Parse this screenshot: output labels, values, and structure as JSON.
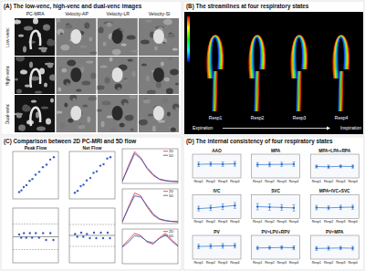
{
  "panels": {
    "a": {
      "title": "(A) The low-venc, high-venc and dual-venc images",
      "columns": [
        "PC-MRA",
        "Velocity-AP",
        "Velocity-LR",
        "Velocity-SI"
      ],
      "rows": [
        "Low-venc",
        "High-venc",
        "Dual-venc"
      ]
    },
    "b": {
      "title": "(B) The streamlines at four respiratory states",
      "states": [
        "Resp1",
        "Resp2",
        "Resp3",
        "Resp4"
      ],
      "left_label": "Expiration",
      "right_label": "Inspiration"
    },
    "c": {
      "title": "(C) Comparison between 2D PC-MRI and 5D flow"
    },
    "d": {
      "title": "(D) The internal consistency of four respiratory states"
    }
  },
  "chart_data": [
    {
      "type": "scatter",
      "title": "Peak Flow",
      "x": [
        70,
        95,
        120,
        150,
        185,
        215,
        250,
        290,
        330,
        370,
        410,
        450
      ],
      "values": [
        72,
        90,
        125,
        145,
        190,
        210,
        255,
        285,
        335,
        360,
        415,
        440
      ],
      "xlim": [
        0,
        500
      ],
      "ylim": [
        0,
        500
      ],
      "color": "#3b5fc0",
      "tick_labels": false
    },
    {
      "type": "scatter",
      "title": "Net Flow",
      "x": [
        12,
        18,
        25,
        31,
        38,
        46,
        53,
        60,
        68,
        75,
        83,
        90
      ],
      "values": [
        13,
        17,
        27,
        30,
        39,
        44,
        55,
        58,
        70,
        73,
        85,
        88
      ],
      "xlim": [
        0,
        100
      ],
      "ylim": [
        0,
        100
      ],
      "color": "#3b5fc0",
      "tick_labels": false
    },
    {
      "type": "scatter",
      "x": [
        71,
        92,
        122,
        148,
        188,
        212,
        252,
        288,
        332,
        365,
        412,
        445
      ],
      "values": [
        2,
        -5,
        5,
        -5,
        5,
        -5,
        5,
        -5,
        5,
        -10,
        5,
        -10
      ],
      "reference_lines": [
        -3,
        25,
        -31
      ],
      "xlim": [
        0,
        500
      ],
      "ylim": [
        -60,
        60
      ],
      "color": "#3b5fc0",
      "tick_labels": false
    },
    {
      "type": "scatter",
      "x": [
        12.5,
        17.5,
        26,
        30.5,
        38.5,
        45,
        54,
        59,
        69,
        74,
        84,
        89
      ],
      "values": [
        1,
        -1,
        2,
        -1,
        1,
        -2,
        2,
        -2,
        2,
        -2,
        2,
        -2
      ],
      "reference_lines": [
        0,
        8,
        -8
      ],
      "xlim": [
        0,
        100
      ],
      "ylim": [
        -20,
        20
      ],
      "color": "#3b5fc0",
      "tick_labels": false
    },
    {
      "type": "line",
      "x": [
        1,
        2,
        3,
        4,
        5,
        6,
        7,
        8,
        9,
        10
      ],
      "series": [
        {
          "name": "2D",
          "color": "#d62728",
          "values": [
            20,
            180,
            320,
            260,
            150,
            80,
            40,
            25,
            20,
            18
          ]
        },
        {
          "name": "5D",
          "color": "#1f4fbf",
          "values": [
            25,
            160,
            300,
            250,
            160,
            90,
            45,
            30,
            22,
            20
          ]
        }
      ],
      "xlim": [
        1,
        10
      ],
      "ylim": [
        0,
        350
      ],
      "legend": "upper right",
      "tick_labels": false
    },
    {
      "type": "line",
      "x": [
        1,
        2,
        3,
        4,
        5,
        6,
        7,
        8,
        9,
        10
      ],
      "series": [
        {
          "name": "2D",
          "color": "#d62728",
          "values": [
            10,
            120,
            220,
            200,
            120,
            60,
            30,
            20,
            15,
            12
          ]
        },
        {
          "name": "5D",
          "color": "#1f4fbf",
          "values": [
            15,
            110,
            200,
            190,
            130,
            70,
            35,
            22,
            16,
            14
          ]
        }
      ],
      "xlim": [
        1,
        10
      ],
      "ylim": [
        0,
        250
      ],
      "legend": "upper right",
      "tick_labels": false
    },
    {
      "type": "line",
      "x": [
        1,
        2,
        3,
        4,
        5,
        6,
        7,
        8,
        9,
        10
      ],
      "series": [
        {
          "name": "2D",
          "color": "#d62728",
          "values": [
            40,
            55,
            70,
            65,
            50,
            45,
            60,
            70,
            55,
            42
          ]
        },
        {
          "name": "5D",
          "color": "#1f4fbf",
          "values": [
            38,
            50,
            65,
            62,
            52,
            48,
            58,
            66,
            52,
            40
          ]
        }
      ],
      "xlim": [
        1,
        10
      ],
      "ylim": [
        0,
        80
      ],
      "legend": "upper right",
      "tick_labels": false
    },
    {
      "type": "line",
      "title": "AAO",
      "categories": [
        "Resp1",
        "Resp2",
        "Resp3",
        "Resp4"
      ],
      "values": [
        86,
        88,
        87,
        89
      ],
      "errors": [
        14,
        13,
        14,
        15
      ],
      "ylim": [
        0,
        150
      ],
      "color": "#2a6fc9",
      "tick_labels": "x"
    },
    {
      "type": "line",
      "title": "MPA",
      "categories": [
        "Resp1",
        "Resp2",
        "Resp3",
        "Resp4"
      ],
      "values": [
        84,
        85,
        86,
        87
      ],
      "errors": [
        13,
        14,
        13,
        14
      ],
      "ylim": [
        0,
        150
      ],
      "color": "#2a6fc9",
      "tick_labels": "x"
    },
    {
      "type": "line",
      "title": "MPA=LPA+RPA",
      "categories": [
        "Resp1",
        "Resp2",
        "Resp3",
        "Resp4"
      ],
      "values": [
        98,
        97,
        99,
        98
      ],
      "errors": [
        6,
        7,
        6,
        7
      ],
      "ylim": [
        50,
        150
      ],
      "color": "#2a6fc9",
      "tick_labels": "x"
    },
    {
      "type": "line",
      "title": "IVC",
      "categories": [
        "Resp1",
        "Resp2",
        "Resp3",
        "Resp4"
      ],
      "values": [
        42,
        45,
        50,
        55
      ],
      "errors": [
        10,
        11,
        12,
        12
      ],
      "ylim": [
        0,
        100
      ],
      "color": "#2a6fc9",
      "tick_labels": "x"
    },
    {
      "type": "line",
      "title": "SVC",
      "categories": [
        "Resp1",
        "Resp2",
        "Resp3",
        "Resp4"
      ],
      "values": [
        30,
        29,
        28,
        27
      ],
      "errors": [
        8,
        8,
        7,
        8
      ],
      "ylim": [
        0,
        60
      ],
      "color": "#2a6fc9",
      "tick_labels": "x"
    },
    {
      "type": "line",
      "title": "MPA=IVC+SVC",
      "categories": [
        "Resp1",
        "Resp2",
        "Resp3",
        "Resp4"
      ],
      "values": [
        96,
        95,
        97,
        98
      ],
      "errors": [
        9,
        8,
        9,
        9
      ],
      "ylim": [
        50,
        150
      ],
      "color": "#2a6fc9",
      "tick_labels": "x"
    },
    {
      "type": "line",
      "title": "PV",
      "categories": [
        "Resp1",
        "Resp2",
        "Resp3",
        "Resp4"
      ],
      "values": [
        80,
        82,
        84,
        85
      ],
      "errors": [
        14,
        14,
        15,
        14
      ],
      "ylim": [
        0,
        150
      ],
      "color": "#2a6fc9",
      "tick_labels": "x"
    },
    {
      "type": "line",
      "title": "PV=LPV+RPV",
      "categories": [
        "Resp1",
        "Resp2",
        "Resp3",
        "Resp4"
      ],
      "values": [
        97,
        98,
        99,
        98
      ],
      "errors": [
        7,
        6,
        7,
        8
      ],
      "ylim": [
        50,
        150
      ],
      "color": "#2a6fc9",
      "tick_labels": "x"
    },
    {
      "type": "line",
      "title": "PV=MPA",
      "categories": [
        "Resp1",
        "Resp2",
        "Resp3",
        "Resp4"
      ],
      "values": [
        95,
        96,
        97,
        96
      ],
      "errors": [
        8,
        8,
        7,
        8
      ],
      "ylim": [
        50,
        150
      ],
      "color": "#2a6fc9",
      "tick_labels": "x"
    }
  ]
}
